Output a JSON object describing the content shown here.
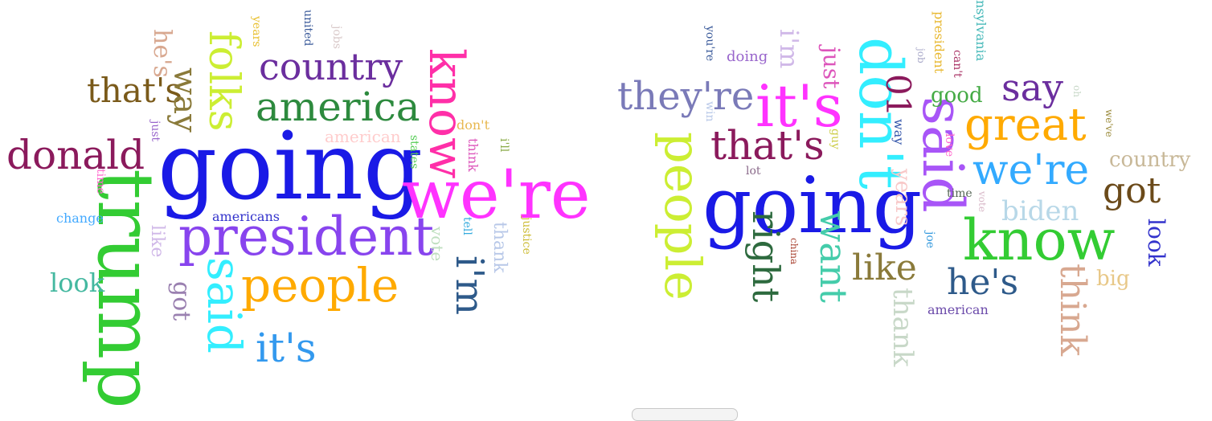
{
  "clouds": [
    {
      "name": "left",
      "words": [
        {
          "text": "going",
          "color": "#1a1ae6"
        },
        {
          "text": "trump",
          "color": "#33cc33"
        },
        {
          "text": "we're",
          "color": "#ff33ff"
        },
        {
          "text": "president",
          "color": "#8844ee"
        },
        {
          "text": "know",
          "color": "#ff2fa8"
        },
        {
          "text": "donald",
          "color": "#8b1a5c"
        },
        {
          "text": "america",
          "color": "#2d8a3e"
        },
        {
          "text": "people",
          "color": "#ffaa00"
        },
        {
          "text": "said",
          "color": "#33eeff"
        },
        {
          "text": "folks",
          "color": "#ccee33"
        },
        {
          "text": "country",
          "color": "#6b2e9e"
        },
        {
          "text": "i'm",
          "color": "#2e5a8a"
        },
        {
          "text": "it's",
          "color": "#3399ee"
        },
        {
          "text": "that's",
          "color": "#7a5a1a"
        },
        {
          "text": "way",
          "color": "#8a7a3a"
        },
        {
          "text": "look",
          "color": "#44b8a0"
        },
        {
          "text": "he's",
          "color": "#d8a890"
        },
        {
          "text": "got",
          "color": "#9a80b0"
        },
        {
          "text": "american",
          "color": "#ffcccc"
        },
        {
          "text": "thank",
          "color": "#b8c8e8"
        },
        {
          "text": "vote",
          "color": "#bfdfbf"
        },
        {
          "text": "like",
          "color": "#d0b8e8"
        },
        {
          "text": "americans",
          "color": "#3333cc"
        },
        {
          "text": "change",
          "color": "#44aaff"
        },
        {
          "text": "years",
          "color": "#e8c030"
        },
        {
          "text": "united",
          "color": "#3a5a9a"
        },
        {
          "text": "jobs",
          "color": "#d8c8c8"
        },
        {
          "text": "just",
          "color": "#9966cc"
        },
        {
          "text": "time",
          "color": "#ff66cc"
        },
        {
          "text": "states",
          "color": "#55cc55"
        },
        {
          "text": "don't",
          "color": "#e8b850"
        },
        {
          "text": "i'll",
          "color": "#88aa44"
        },
        {
          "text": "think",
          "color": "#dd55bb"
        },
        {
          "text": "tell",
          "color": "#33aadd"
        },
        {
          "text": "justice",
          "color": "#ccbb33"
        }
      ]
    },
    {
      "name": "right",
      "words": [
        {
          "text": "going",
          "color": "#1a1ae6"
        },
        {
          "text": "know",
          "color": "#33cc33"
        },
        {
          "text": "said",
          "color": "#a855f7"
        },
        {
          "text": "don't",
          "color": "#33eeff"
        },
        {
          "text": "it's",
          "color": "#ff33ff"
        },
        {
          "text": "people",
          "color": "#ccee33"
        },
        {
          "text": "they're",
          "color": "#7a7ab8"
        },
        {
          "text": "that's",
          "color": "#8b1a5c"
        },
        {
          "text": "great",
          "color": "#ffaa00"
        },
        {
          "text": "we're",
          "color": "#33aaff"
        },
        {
          "text": "say",
          "color": "#6b2e9e"
        },
        {
          "text": "right",
          "color": "#2d6a3e"
        },
        {
          "text": "want",
          "color": "#44ccaa"
        },
        {
          "text": "like",
          "color": "#8a7a3a"
        },
        {
          "text": "he's",
          "color": "#2e5a8a"
        },
        {
          "text": "got",
          "color": "#6b4a1a"
        },
        {
          "text": "think",
          "color": "#d8a890"
        },
        {
          "text": "biden",
          "color": "#b8d8e8"
        },
        {
          "text": "country",
          "color": "#c8b898"
        },
        {
          "text": "thank",
          "color": "#c8d8c8"
        },
        {
          "text": "look",
          "color": "#3333cc"
        },
        {
          "text": "big",
          "color": "#e8c888"
        },
        {
          "text": "years",
          "color": "#f8c8c8"
        },
        {
          "text": "i'm",
          "color": "#d0b8e8"
        },
        {
          "text": "just",
          "color": "#dd55bb"
        },
        {
          "text": "01",
          "color": "#8b1a5c"
        },
        {
          "text": "good",
          "color": "#44aa44"
        },
        {
          "text": "doing",
          "color": "#9966cc"
        },
        {
          "text": "you're",
          "color": "#3a5a9a"
        },
        {
          "text": "president",
          "color": "#e8b830"
        },
        {
          "text": "can't",
          "color": "#aa3366"
        },
        {
          "text": "nsylvania",
          "color": "#44b8b8"
        },
        {
          "text": "job",
          "color": "#a8a8c8"
        },
        {
          "text": "way",
          "color": "#3355aa"
        },
        {
          "text": "love",
          "color": "#ff66cc"
        },
        {
          "text": "win",
          "color": "#b8c8e8"
        },
        {
          "text": "lot",
          "color": "#8a6a8a"
        },
        {
          "text": "guy",
          "color": "#cccc44"
        },
        {
          "text": "time",
          "color": "#556655"
        },
        {
          "text": "vote",
          "color": "#d8b8c8"
        },
        {
          "text": "china",
          "color": "#aa4433"
        },
        {
          "text": "joe",
          "color": "#3399dd"
        },
        {
          "text": "american",
          "color": "#6b4aaa"
        },
        {
          "text": "oh",
          "color": "#c8d8c8"
        },
        {
          "text": "we've",
          "color": "#9a8a3a"
        }
      ]
    }
  ]
}
